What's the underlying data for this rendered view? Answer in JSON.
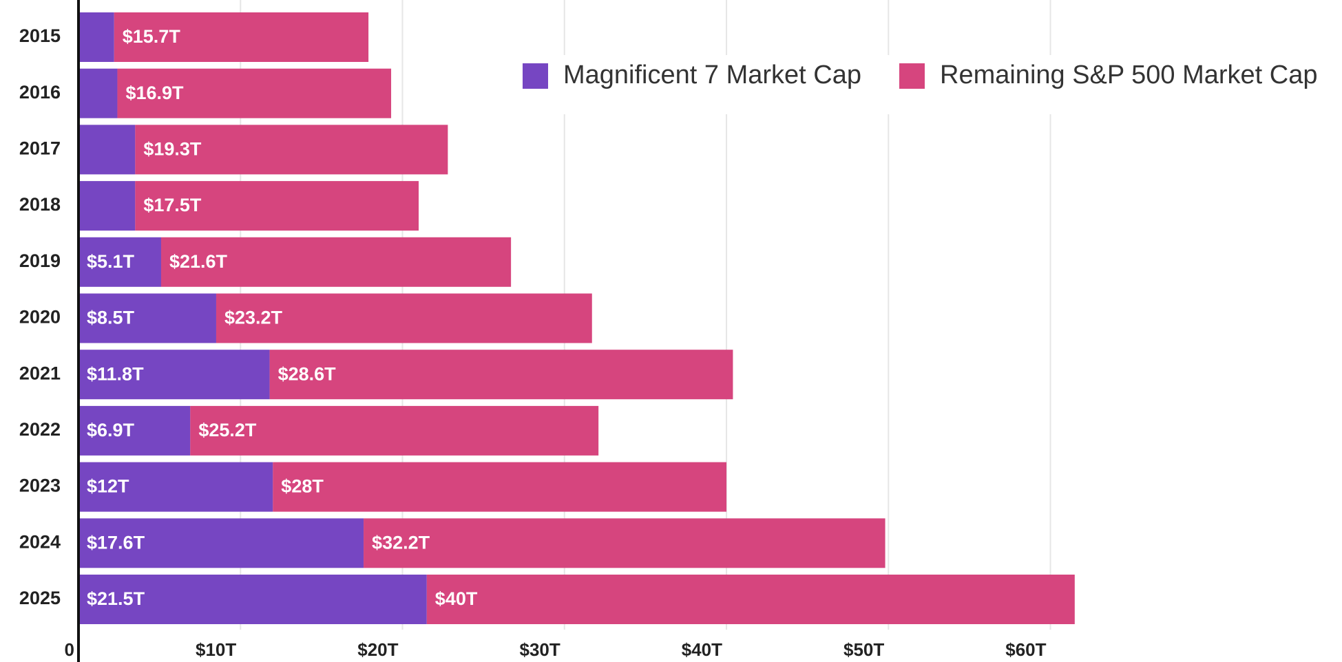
{
  "chart_data": {
    "type": "stacked-bar-horizontal",
    "categories": [
      "2015",
      "2016",
      "2017",
      "2018",
      "2019",
      "2020",
      "2021",
      "2022",
      "2023",
      "2024",
      "2025"
    ],
    "series": [
      {
        "name": "Magnificent 7 Market Cap",
        "color": "#7646c2",
        "values": [
          2.2,
          2.4,
          3.5,
          3.5,
          5.1,
          8.5,
          11.8,
          6.9,
          12,
          17.6,
          21.5
        ],
        "value_labels": [
          null,
          null,
          null,
          null,
          "$5.1T",
          "$8.5T",
          "$11.8T",
          "$6.9T",
          "$12T",
          "$17.6T",
          "$21.5T"
        ]
      },
      {
        "name": "Remaining S&P 500 Market Cap",
        "color": "#d6457e",
        "values": [
          15.7,
          16.9,
          19.3,
          17.5,
          21.6,
          23.2,
          28.6,
          25.2,
          28,
          32.2,
          40
        ],
        "value_labels": [
          "$15.7T",
          "$16.9T",
          "$19.3T",
          "$17.5T",
          "$21.6T",
          "$23.2T",
          "$28.6T",
          "$25.2T",
          "$28T",
          "$32.2T",
          "$40T"
        ]
      }
    ],
    "xlim": [
      0,
      78
    ],
    "xticks": [
      0,
      {
        "value": 10,
        "label": "$10T"
      },
      {
        "value": 20,
        "label": "$20T"
      },
      {
        "value": 30,
        "label": "$30T"
      },
      {
        "value": 40,
        "label": "$40T"
      },
      {
        "value": 50,
        "label": "$50T"
      },
      {
        "value": 60,
        "label": "$60T"
      }
    ],
    "grid": true,
    "legend": "upper right"
  }
}
